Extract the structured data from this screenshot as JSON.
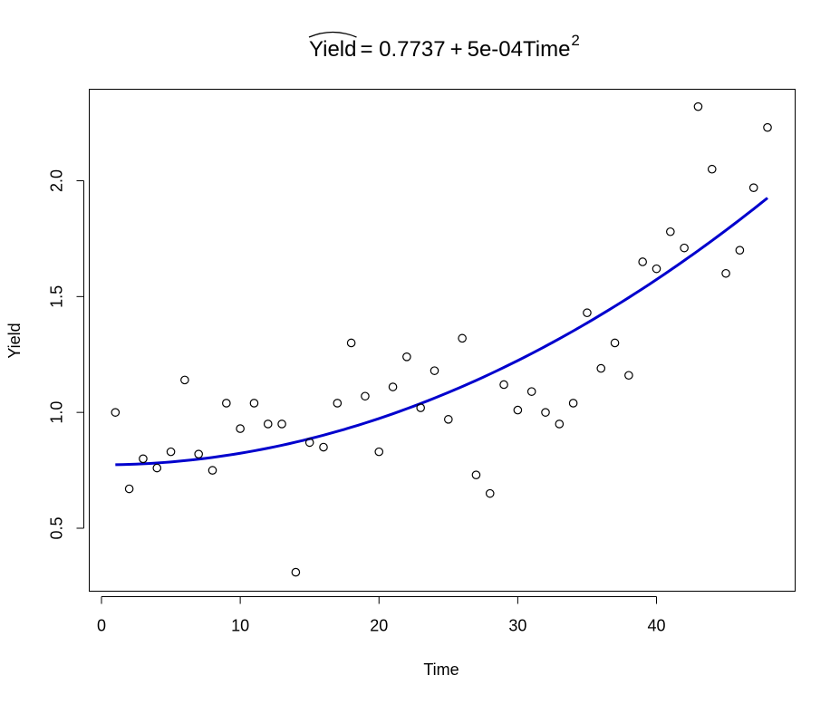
{
  "chart_data": {
    "type": "scatter",
    "title": {
      "response": "Yield",
      "eq": "= 0.7737",
      "plus": "+",
      "term": "5e-04Time",
      "exponent": "2"
    },
    "xlabel": "Time",
    "ylabel": "Yield",
    "xlim": [
      0,
      48
    ],
    "ylim": [
      0.3,
      2.32
    ],
    "x_ticks": [
      0,
      10,
      20,
      30,
      40
    ],
    "x_tick_labels": [
      "0",
      "10",
      "20",
      "30",
      "40"
    ],
    "y_ticks": [
      0.5,
      1.0,
      1.5,
      2.0
    ],
    "y_tick_labels": [
      "0.5",
      "1.0",
      "1.5",
      "2.0"
    ],
    "grid": false,
    "series": [
      {
        "marker": "open-circle",
        "color": "#000000",
        "x": [
          1,
          2,
          3,
          4,
          5,
          6,
          7,
          8,
          9,
          10,
          11,
          12,
          13,
          14,
          15,
          16,
          17,
          18,
          19,
          20,
          21,
          22,
          23,
          24,
          25,
          26,
          27,
          28,
          29,
          30,
          31,
          32,
          33,
          34,
          35,
          36,
          37,
          38,
          39,
          40,
          41,
          42,
          43,
          44,
          45,
          46,
          47,
          48
        ],
        "y": [
          1.0,
          0.67,
          0.8,
          0.76,
          0.83,
          1.14,
          0.82,
          0.75,
          1.04,
          0.93,
          1.04,
          0.95,
          0.95,
          0.31,
          0.87,
          0.85,
          1.04,
          1.3,
          1.07,
          0.83,
          1.11,
          1.24,
          1.02,
          1.18,
          0.97,
          1.32,
          0.73,
          0.65,
          1.12,
          1.01,
          1.09,
          1.0,
          0.95,
          1.04,
          1.43,
          1.19,
          1.3,
          1.16,
          1.65,
          1.62,
          1.78,
          1.71,
          2.32,
          2.05,
          1.6,
          1.7,
          1.97,
          2.23
        ]
      }
    ],
    "fit": {
      "type": "line",
      "color": "#0000CD",
      "intercept": 0.7737,
      "coef": 0.0005,
      "x_range": [
        1,
        48
      ]
    }
  }
}
